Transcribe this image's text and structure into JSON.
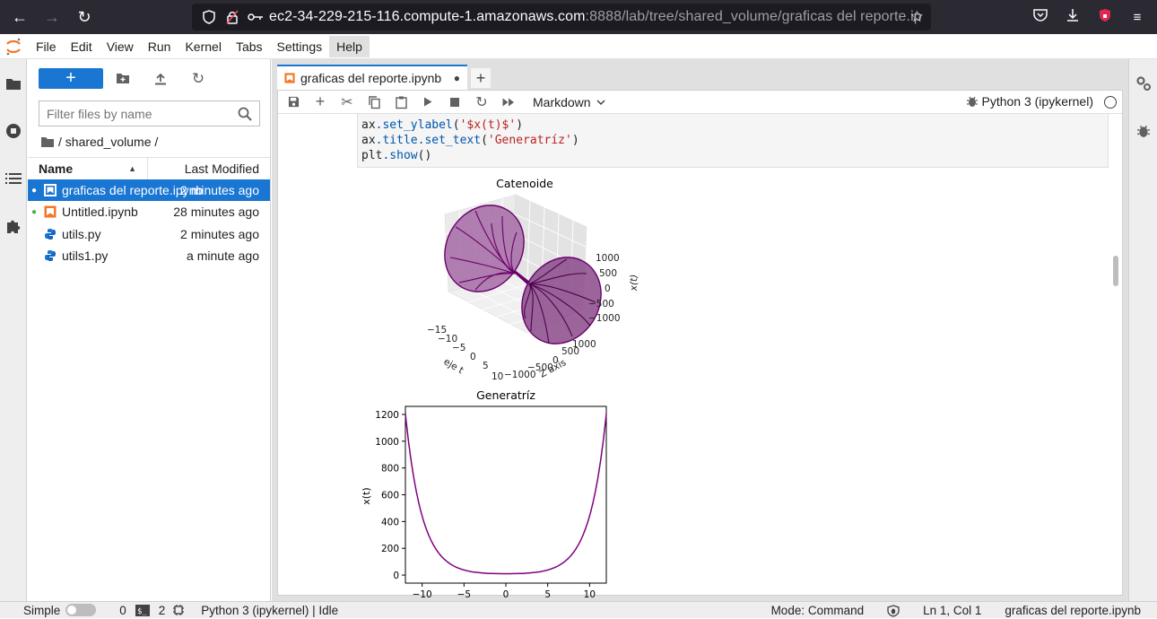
{
  "browser": {
    "url_host": "ec2-34-229-215-116.compute-1.amazonaws.com",
    "url_path": ":8888/lab/tree/shared_volume/graficas del reporte.ip"
  },
  "menu": {
    "items": [
      "File",
      "Edit",
      "View",
      "Run",
      "Kernel",
      "Tabs",
      "Settings",
      "Help"
    ]
  },
  "filebrowser": {
    "filter_placeholder": "Filter files by name",
    "breadcrumb": "/ shared_volume /",
    "col_name": "Name",
    "col_modified": "Last Modified",
    "files": [
      {
        "name": "graficas del reporte.ipynb",
        "modified": "2 minutes ago"
      },
      {
        "name": "Untitled.ipynb",
        "modified": "28 minutes ago"
      },
      {
        "name": "utils.py",
        "modified": "2 minutes ago"
      },
      {
        "name": "utils1.py",
        "modified": "a minute ago"
      }
    ]
  },
  "notebook": {
    "tab_label": "graficas del reporte.ipynb",
    "cell_type": "Markdown",
    "kernel_name": "Python 3 (ipykernel)",
    "code": {
      "l1_obj": "ax",
      "l1_attr": ".set_ylabel",
      "l1_open": "(",
      "l1_str": "'$x(t)$'",
      "l1_close": ")",
      "l2_obj": "ax",
      "l2_attr1": ".title",
      "l2_attr2": ".set_text",
      "l2_open": "(",
      "l2_str": "'Generatríz'",
      "l2_close": ")",
      "l3_obj": "plt",
      "l3_attr": ".show",
      "l3_rest": "()"
    }
  },
  "chart_data": [
    {
      "type": "surface3d",
      "title": "Catenoide",
      "xlabel": "eje t",
      "ylabel": "Z axis",
      "zlabel": "x(t)",
      "xticks": [
        "−15",
        "−10",
        "−5",
        "0",
        "5",
        "10"
      ],
      "yticks": [
        "−1000",
        "−500",
        "0",
        "500",
        "1000"
      ],
      "zticks": [
        "1000",
        "500",
        "0",
        "−500",
        "−1000"
      ],
      "color": "#800080"
    },
    {
      "type": "line",
      "title": "Generatríz",
      "xlabel": "",
      "ylabel": "x(t)",
      "xlim": [
        -12,
        12
      ],
      "ylim": [
        -60,
        1260
      ],
      "xticks": [
        -10,
        -5,
        0,
        5,
        10
      ],
      "yticks": [
        0,
        200,
        400,
        600,
        800,
        1000,
        1200
      ],
      "xtick_labels": [
        "−10",
        "−5",
        "0",
        "5",
        "10"
      ],
      "x": [
        -12,
        -10,
        -8,
        -6,
        -4,
        -2,
        0,
        2,
        4,
        6,
        8,
        10,
        12
      ],
      "y": [
        1205,
        441,
        163,
        61,
        24,
        12,
        10,
        12,
        24,
        61,
        163,
        441,
        1205
      ],
      "color": "#800080"
    }
  ],
  "statusbar": {
    "simple": "Simple",
    "terminals": "0",
    "kernels": "2",
    "kernel_status": "Python 3 (ipykernel) | Idle",
    "mode": "Mode: Command",
    "position": "Ln 1, Col 1",
    "filename": "graficas del reporte.ipynb"
  }
}
